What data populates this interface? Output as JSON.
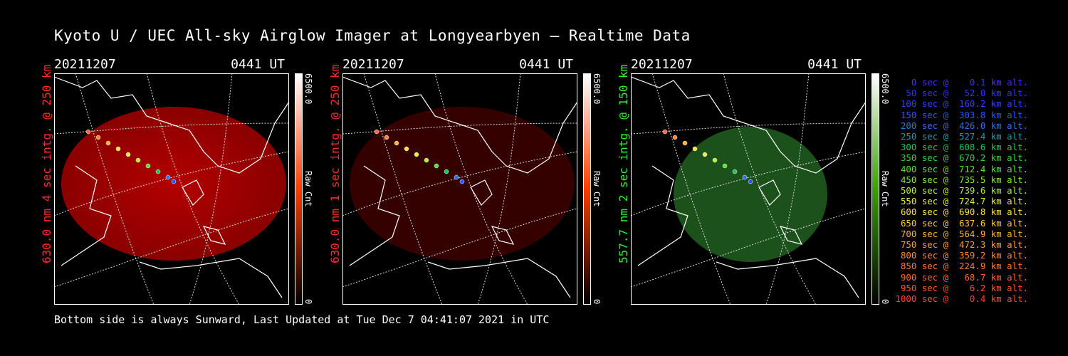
{
  "title": "Kyoto U / UEC All-sky Airglow Imager at Longyearbyen — Realtime Data",
  "footer": "Bottom side is always Sunward, Last Updated at Tue Dec  7 04:41:07 2021 in UTC",
  "panels": [
    {
      "date": "20211207",
      "time": "0441 UT",
      "side_label": "630.0 nm 4 sec intg. @ 250 km",
      "side_color": "#ff2a2a",
      "glow": "#a20000",
      "glow_opacity": 0.85,
      "cbar_max": "6500.0",
      "cbar_min": "0",
      "cbar_label": "Raw Cnt",
      "cbar_color": "#ff3b00"
    },
    {
      "date": "20211207",
      "time": "0441 UT",
      "side_label": "630.0 nm 1 sec intg. @ 250 km",
      "side_color": "#ff2a2a",
      "glow": "#3a0000",
      "glow_opacity": 0.9,
      "cbar_max": "6500.0",
      "cbar_min": "0",
      "cbar_label": "Raw Cnt",
      "cbar_color": "#ff3b00"
    },
    {
      "date": "20211207",
      "time": "0441 UT",
      "side_label": "557.7 nm 2 sec intg. @ 150 km",
      "side_color": "#33ee33",
      "glow": "#1f5a1f",
      "glow_opacity": 0.9,
      "cbar_max": "6500.0",
      "cbar_min": "0",
      "cbar_label": "Raw Cnt",
      "cbar_color": "#66cc00"
    }
  ],
  "legend": [
    {
      "text": "   0 sec @    0.1 km alt.",
      "color": "#4a2cff"
    },
    {
      "text": "  50 sec @   52.0 km alt.",
      "color": "#3030ff"
    },
    {
      "text": " 100 sec @  160.2 km alt.",
      "color": "#2f40ff"
    },
    {
      "text": " 150 sec @  303.8 km alt.",
      "color": "#2a55ff"
    },
    {
      "text": " 200 sec @  426.0 km alt.",
      "color": "#2e72dd"
    },
    {
      "text": " 250 sec @  527.4 km alt.",
      "color": "#1f9aa8"
    },
    {
      "text": " 300 sec @  608.6 km alt.",
      "color": "#22c060"
    },
    {
      "text": " 350 sec @  670.2 km alt.",
      "color": "#36d23a"
    },
    {
      "text": " 400 sec @  712.4 km alt.",
      "color": "#57e030"
    },
    {
      "text": " 450 sec @  735.5 km alt.",
      "color": "#82ee2c"
    },
    {
      "text": " 500 sec @  739.6 km alt.",
      "color": "#b3f02e"
    },
    {
      "text": " 550 sec @  724.7 km alt.",
      "color": "#e6f03a"
    },
    {
      "text": " 600 sec @  690.8 km alt.",
      "color": "#ffe040"
    },
    {
      "text": " 650 sec @  637.6 km alt.",
      "color": "#ffc83a"
    },
    {
      "text": " 700 sec @  564.9 km alt.",
      "color": "#ffb035"
    },
    {
      "text": " 750 sec @  472.3 km alt.",
      "color": "#ff9e30"
    },
    {
      "text": " 800 sec @  359.2 km alt.",
      "color": "#ff8a2e"
    },
    {
      "text": " 850 sec @  224.9 km alt.",
      "color": "#ff782c"
    },
    {
      "text": " 900 sec @   68.7 km alt.",
      "color": "#ff652a"
    },
    {
      "text": " 950 sec @    6.2 km alt.",
      "color": "#ff5528"
    },
    {
      "text": "1000 sec @    0.4 km alt.",
      "color": "#ff4526"
    }
  ]
}
